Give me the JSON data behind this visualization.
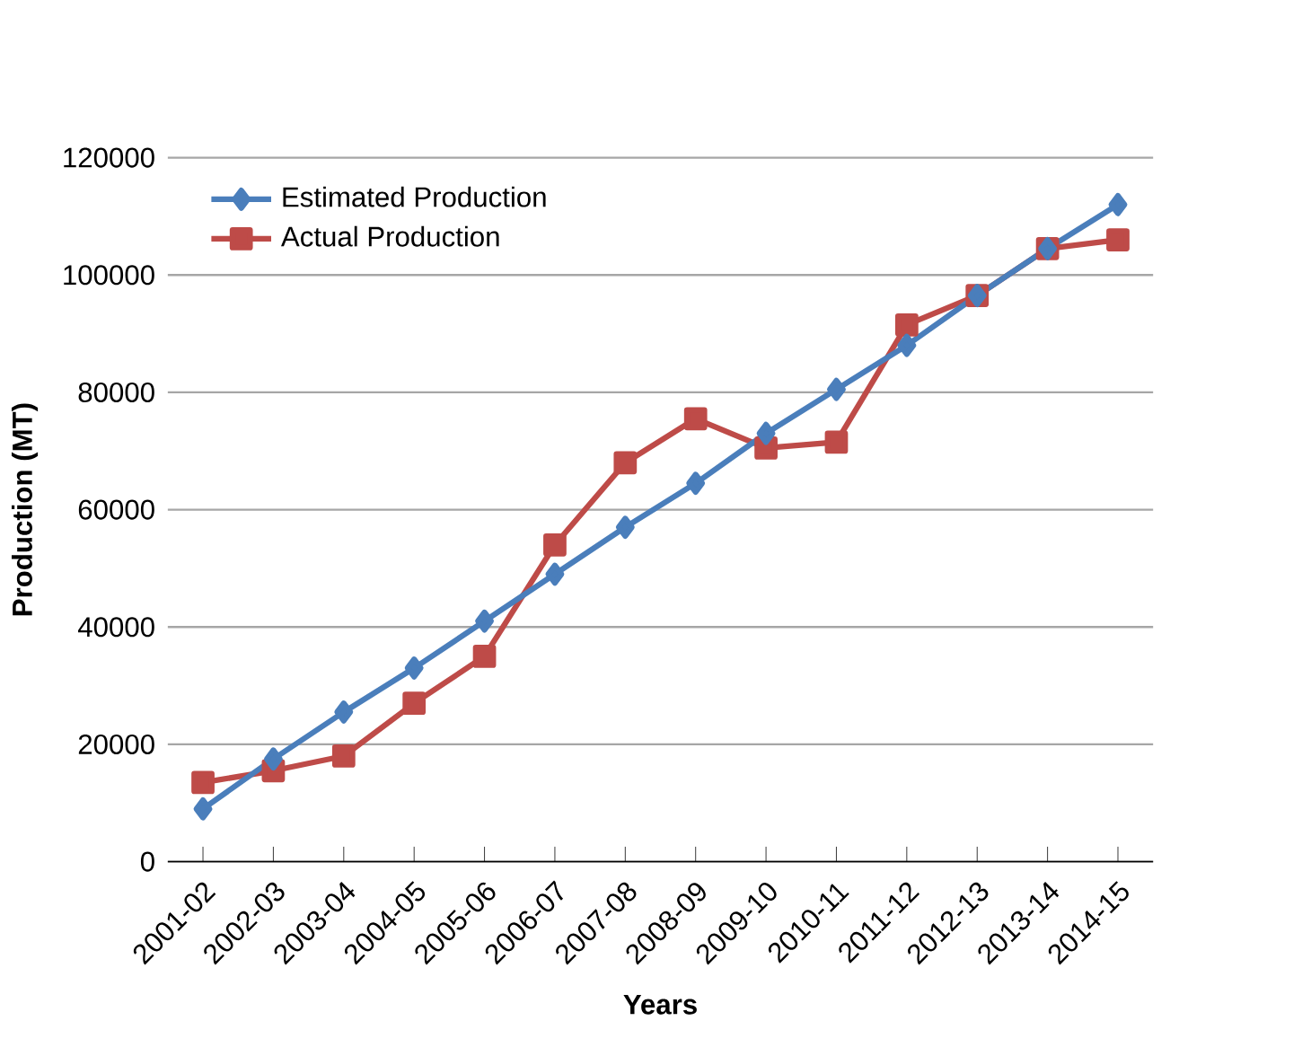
{
  "chart_data": {
    "type": "line",
    "xlabel": "Years",
    "ylabel": "Production (MT)",
    "categories": [
      "2001-02",
      "2002-03",
      "2003-04",
      "2004-05",
      "2005-06",
      "2006-07",
      "2007-08",
      "2008-09",
      "2009-10",
      "2010-11",
      "2011-12",
      "2012-13",
      "2013-14",
      "2014-15"
    ],
    "series": [
      {
        "name": "Estimated Production",
        "color": "#4a7ebb",
        "marker": "diamond",
        "values": [
          9000,
          17500,
          25500,
          33000,
          41000,
          49000,
          57000,
          64500,
          73000,
          80500,
          88000,
          96500,
          104500,
          112000
        ]
      },
      {
        "name": "Actual Production",
        "color": "#be4b48",
        "marker": "square",
        "values": [
          13500,
          15500,
          18000,
          27000,
          35000,
          54000,
          68000,
          75500,
          70500,
          71500,
          91500,
          96500,
          104500,
          106000
        ]
      }
    ],
    "ylim": [
      0,
      120000
    ],
    "yticks": [
      0,
      20000,
      40000,
      60000,
      80000,
      100000,
      120000
    ],
    "grid": "y",
    "legend": "top left",
    "line_style": "solid"
  }
}
